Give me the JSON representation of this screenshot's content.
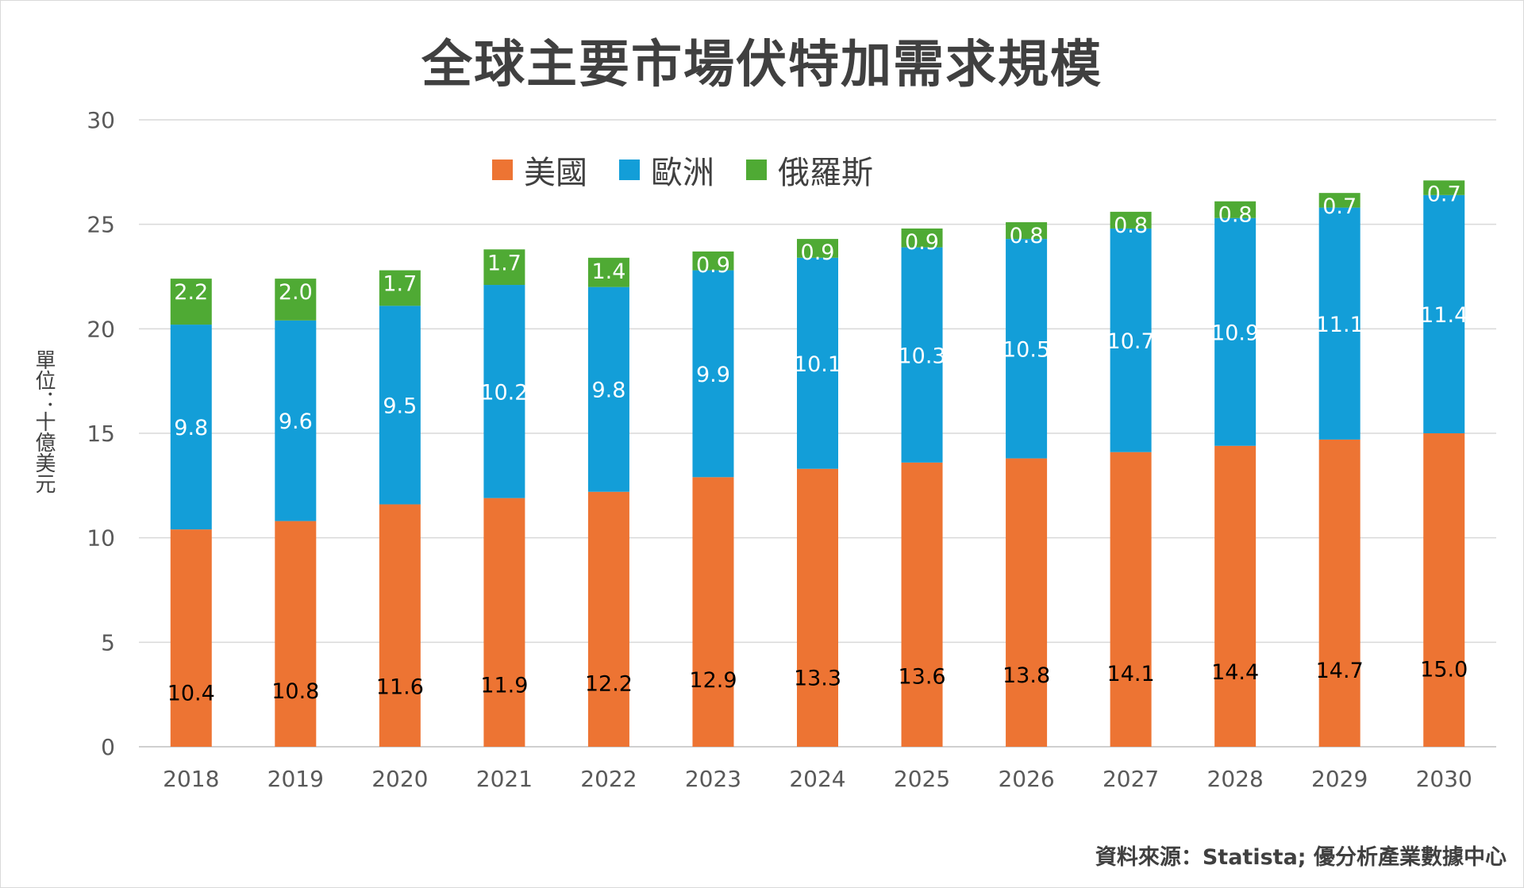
{
  "chart_data": {
    "type": "bar",
    "stacked": true,
    "title": "全球主要市場伏特加需求規模",
    "ylabel": "單位：十億美元",
    "xlabel": "",
    "ylim": [
      0,
      30
    ],
    "yticks": [
      0,
      5,
      10,
      15,
      20,
      25,
      30
    ],
    "grid": true,
    "legend_position": "top",
    "categories": [
      "2018",
      "2019",
      "2020",
      "2021",
      "2022",
      "2023",
      "2024",
      "2025",
      "2026",
      "2027",
      "2028",
      "2029",
      "2030"
    ],
    "series": [
      {
        "name": "美國",
        "color": "#ED7433",
        "label_color": "#000000",
        "values": [
          10.4,
          10.8,
          11.6,
          11.9,
          12.2,
          12.9,
          13.3,
          13.6,
          13.8,
          14.1,
          14.4,
          14.7,
          15.0
        ],
        "labels": [
          "10.4",
          "10.8",
          "11.6",
          "11.9",
          "12.2",
          "12.9",
          "13.3",
          "13.6",
          "13.8",
          "14.1",
          "14.4",
          "14.7",
          "15.0"
        ]
      },
      {
        "name": "歐洲",
        "color": "#139ED8",
        "label_color": "#ffffff",
        "values": [
          9.8,
          9.6,
          9.5,
          10.2,
          9.8,
          9.9,
          10.1,
          10.3,
          10.5,
          10.7,
          10.9,
          11.1,
          11.4
        ],
        "labels": [
          "9.8",
          "9.6",
          "9.5",
          "10.2",
          "9.8",
          "9.9",
          "10.1",
          "10.3",
          "10.5",
          "10.7",
          "10.9",
          "11.1",
          "11.4"
        ]
      },
      {
        "name": "俄羅斯",
        "color": "#4FAA34",
        "label_color": "#ffffff",
        "values": [
          2.2,
          2.0,
          1.7,
          1.7,
          1.4,
          0.9,
          0.9,
          0.9,
          0.8,
          0.8,
          0.8,
          0.7,
          0.7
        ],
        "labels": [
          "2.2",
          "2.0",
          "1.7",
          "1.7",
          "1.4",
          "0.9",
          "0.9",
          "0.9",
          "0.8",
          "0.8",
          "0.8",
          "0.7",
          "0.7"
        ]
      }
    ]
  },
  "source": "資料來源：Statista; 優分析產業數據中心"
}
